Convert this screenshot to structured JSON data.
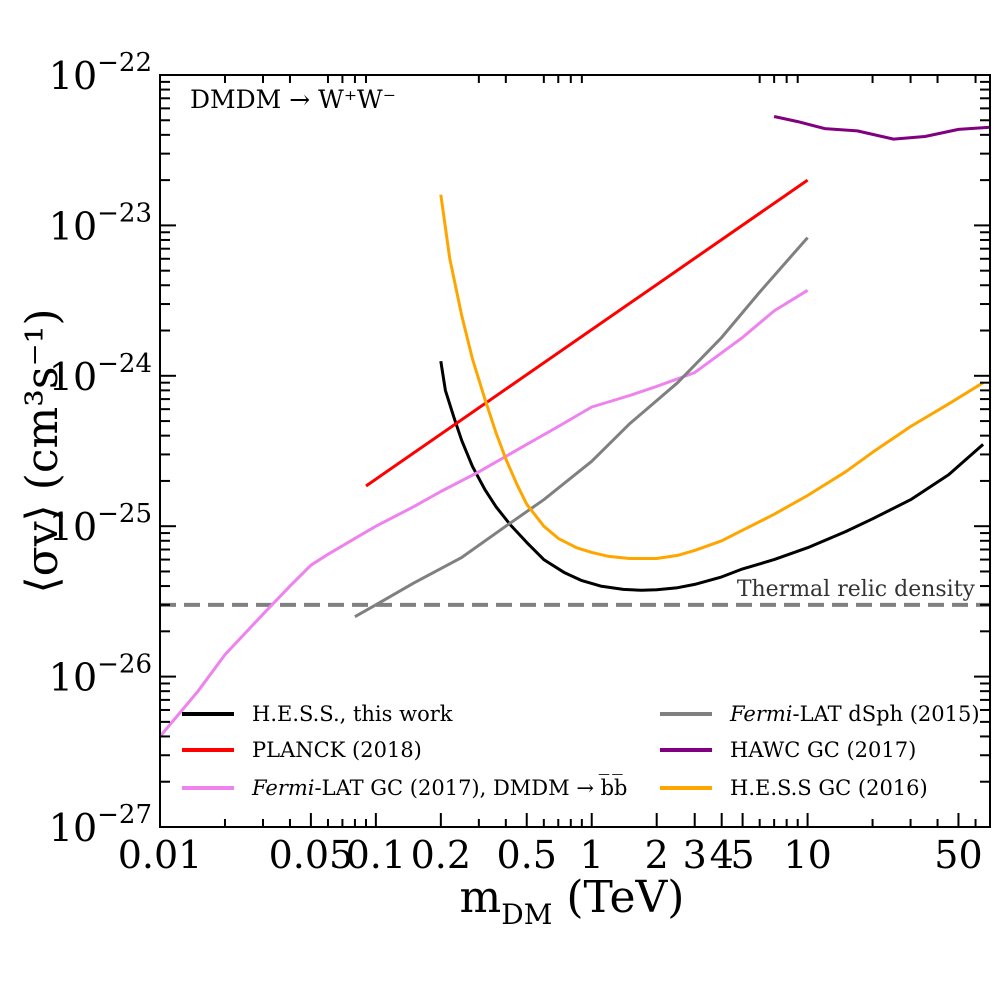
{
  "chart_data": {
    "type": "line",
    "annotation": "DMDM → W⁺W⁻",
    "xlabel": "m_DM (TeV)",
    "ylabel": "⟨σv⟩ (cm³s⁻¹)",
    "xscale": "log",
    "yscale": "log",
    "xlim": [
      0.01,
      70
    ],
    "ylim": [
      1e-27,
      1e-22
    ],
    "x_ticks": [
      {
        "value": 0.01,
        "label": "0.01"
      },
      {
        "value": 0.05,
        "label": "0.05"
      },
      {
        "value": 0.1,
        "label": "0.1"
      },
      {
        "value": 0.2,
        "label": "0.2"
      },
      {
        "value": 0.5,
        "label": "0.5"
      },
      {
        "value": 1,
        "label": "1"
      },
      {
        "value": 2,
        "label": "2"
      },
      {
        "value": 3,
        "label": "3"
      },
      {
        "value": 4,
        "label": "4"
      },
      {
        "value": 5,
        "label": "5"
      },
      {
        "value": 10,
        "label": "10"
      },
      {
        "value": 50,
        "label": "50"
      }
    ],
    "y_ticks": [
      {
        "value": 1e-27,
        "exp": "−27"
      },
      {
        "value": 1e-26,
        "exp": "−26"
      },
      {
        "value": 1e-25,
        "exp": "−25"
      },
      {
        "value": 1e-24,
        "exp": "−24"
      },
      {
        "value": 1e-23,
        "exp": "−23"
      },
      {
        "value": 1e-22,
        "exp": "−22"
      }
    ],
    "y_tick_base": "10",
    "thermal_relic": {
      "value": 3e-26,
      "label": "Thermal relic density",
      "color": "#808080"
    },
    "legend_placement": "lower-center, two columns",
    "series": [
      {
        "name": "H.E.S.S., this work",
        "color": "#000000",
        "x": [
          0.2,
          0.21,
          0.23,
          0.25,
          0.28,
          0.32,
          0.36,
          0.42,
          0.5,
          0.6,
          0.75,
          0.9,
          1.1,
          1.4,
          1.7,
          2.0,
          2.5,
          3.0,
          4.0,
          5.0,
          7.0,
          10.0,
          15.0,
          20.0,
          30.0,
          45.0,
          65.0
        ],
        "y": [
          1.25e-24,
          8e-25,
          5.3e-25,
          3.7e-25,
          2.5e-25,
          1.75e-25,
          1.35e-25,
          1.02e-25,
          7.8e-26,
          6e-26,
          4.9e-26,
          4.35e-26,
          4e-26,
          3.8e-26,
          3.75e-26,
          3.78e-26,
          3.9e-26,
          4.1e-26,
          4.6e-26,
          5.2e-26,
          6e-26,
          7.2e-26,
          9.2e-26,
          1.12e-25,
          1.5e-25,
          2.2e-25,
          3.5e-25
        ]
      },
      {
        "name": "PLANCK (2018)",
        "color": "#ff0000",
        "x": [
          0.09,
          10.0
        ],
        "y": [
          1.85e-25,
          2e-23
        ]
      },
      {
        "name": "Fermi-LAT GC (2017), DMDM → b̅b̅",
        "color": "#ee82ee",
        "x": [
          0.01,
          0.015,
          0.02,
          0.03,
          0.04,
          0.05,
          0.06,
          0.08,
          0.1,
          0.15,
          0.2,
          0.3,
          0.5,
          0.7,
          1.0,
          1.5,
          2.0,
          3.0,
          5.0,
          7.0,
          10.0
        ],
        "y": [
          4e-27,
          8e-27,
          1.4e-26,
          2.6e-26,
          4e-26,
          5.5e-26,
          6.5e-26,
          8.3e-26,
          1e-25,
          1.35e-25,
          1.7e-25,
          2.3e-25,
          3.5e-25,
          4.6e-25,
          6.2e-25,
          7.4e-25,
          8.5e-25,
          1.05e-24,
          1.8e-24,
          2.7e-24,
          3.7e-24
        ]
      },
      {
        "name": "Fermi-LAT dSph (2015)",
        "color": "#808080",
        "x": [
          0.08,
          0.1,
          0.15,
          0.25,
          0.4,
          0.6,
          1.0,
          1.5,
          2.5,
          4.0,
          6.0,
          10.0
        ],
        "y": [
          2.5e-26,
          3e-26,
          4.2e-26,
          6.2e-26,
          1e-25,
          1.5e-25,
          2.7e-25,
          4.8e-25,
          9e-25,
          1.8e-24,
          3.6e-24,
          8.3e-24
        ]
      },
      {
        "name": "HAWC GC (2017)",
        "color": "#800080",
        "x": [
          7.0,
          9.0,
          12.0,
          17.0,
          25.0,
          35.0,
          50.0,
          70.0
        ],
        "y": [
          5.3e-23,
          4.9e-23,
          4.4e-23,
          4.25e-23,
          3.75e-23,
          3.9e-23,
          4.35e-23,
          4.5e-23
        ]
      },
      {
        "name": "H.E.S.S GC (2016)",
        "color": "#ffa500",
        "x": [
          0.2,
          0.22,
          0.25,
          0.28,
          0.32,
          0.36,
          0.4,
          0.45,
          0.5,
          0.6,
          0.7,
          0.85,
          1.0,
          1.2,
          1.5,
          2.0,
          2.5,
          3.0,
          4.0,
          5.0,
          7.0,
          10.0,
          15.0,
          20.0,
          30.0,
          45.0,
          65.0
        ],
        "y": [
          1.6e-23,
          6e-24,
          2.5e-24,
          1.3e-24,
          7e-25,
          4.2e-25,
          2.8e-25,
          1.9e-25,
          1.4e-25,
          1e-25,
          8.3e-26,
          7.2e-26,
          6.7e-26,
          6.3e-26,
          6.1e-26,
          6.1e-26,
          6.4e-26,
          6.9e-26,
          8e-26,
          9.4e-26,
          1.2e-25,
          1.6e-25,
          2.3e-25,
          3.1e-25,
          4.6e-25,
          6.5e-25,
          9e-25
        ]
      }
    ]
  }
}
